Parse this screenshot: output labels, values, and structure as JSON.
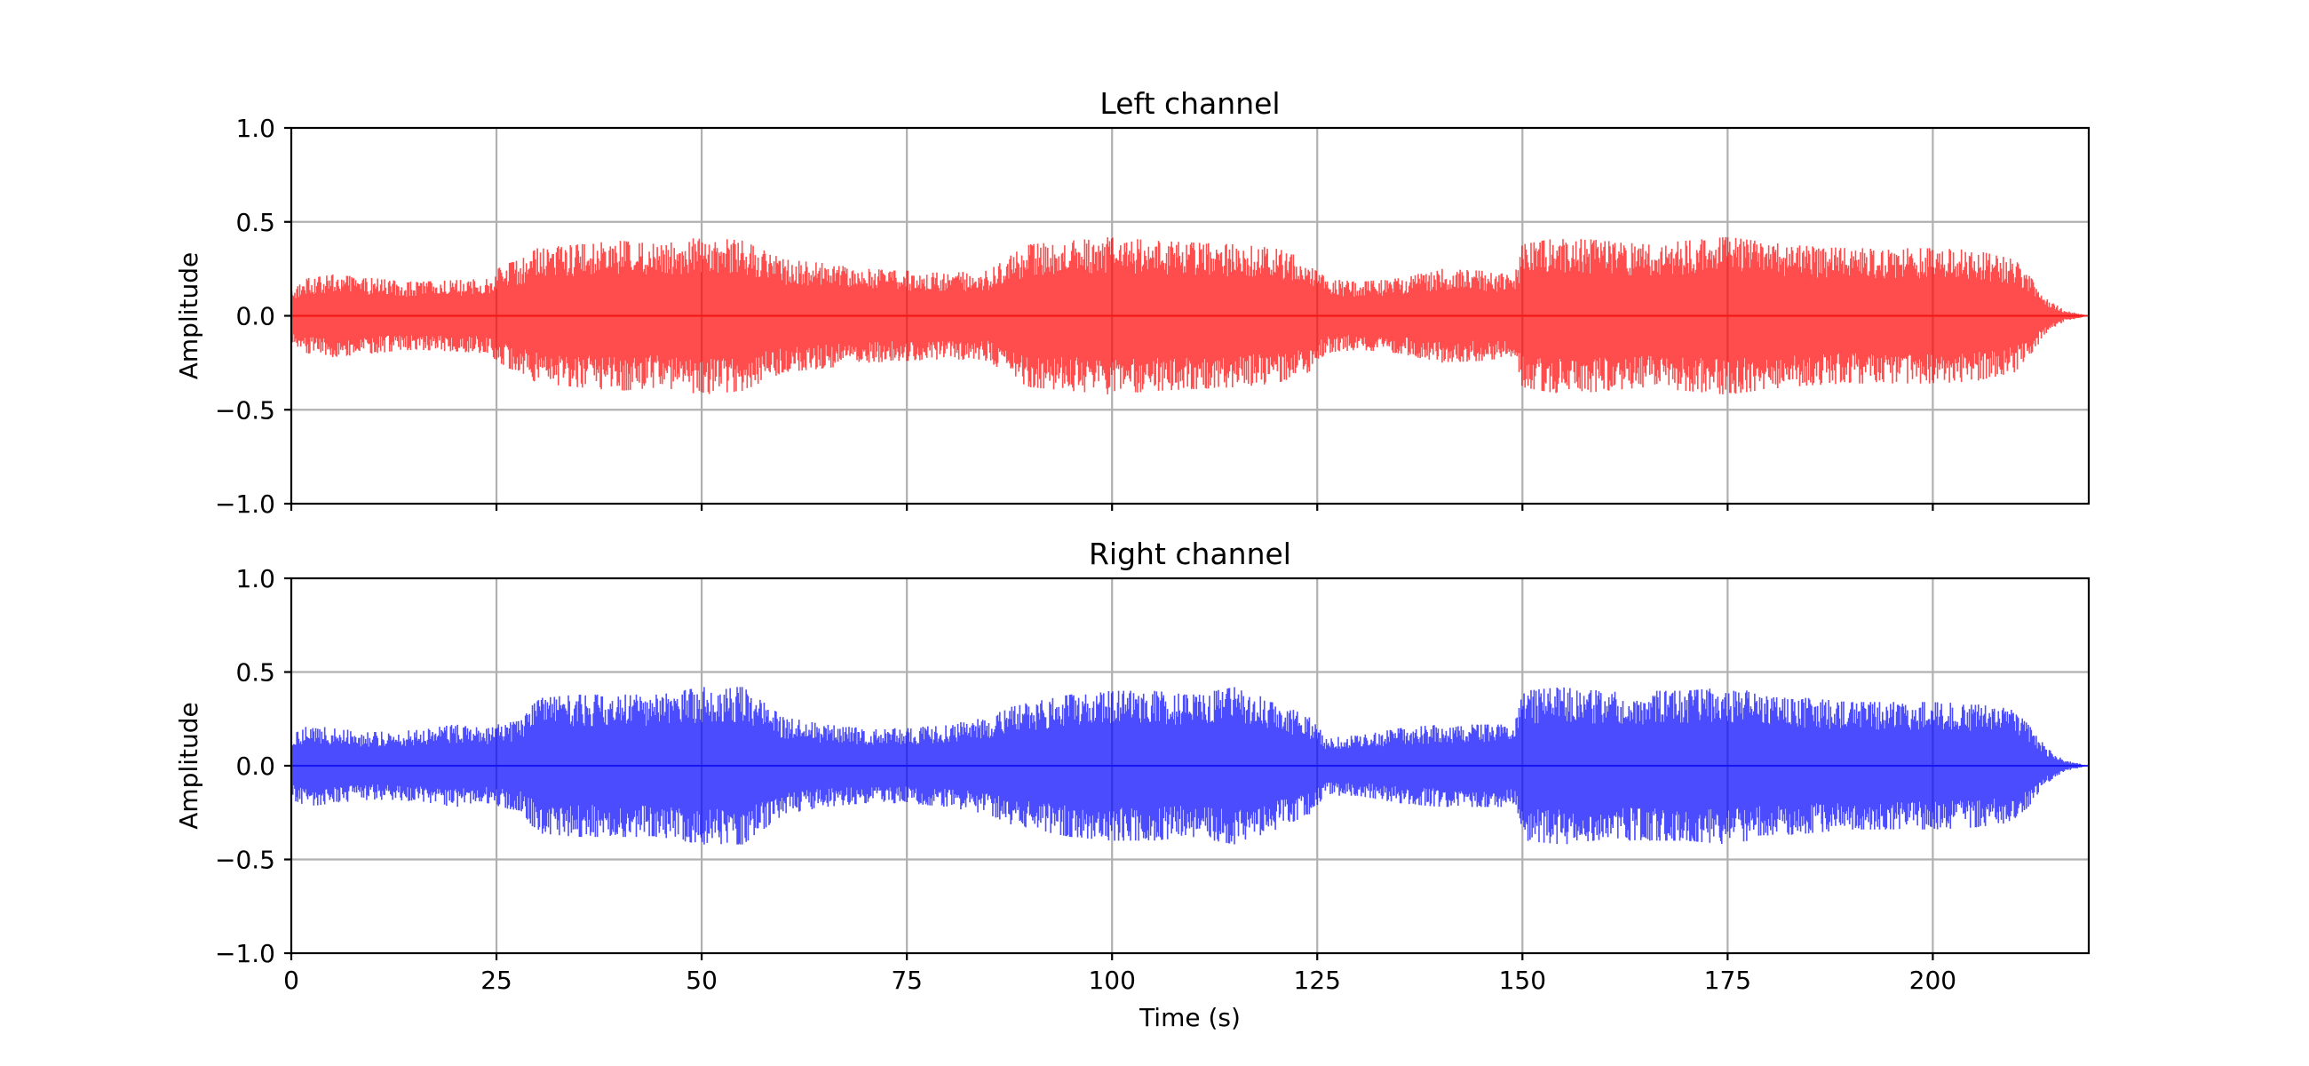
{
  "chart_data": [
    {
      "type": "area",
      "title": "Left channel",
      "xlabel": "",
      "ylabel": "Amplitude",
      "color": "#ff0000",
      "xlim": [
        0,
        219
      ],
      "ylim": [
        -1.0,
        1.0
      ],
      "xticks": [
        0,
        25,
        50,
        75,
        100,
        125,
        150,
        175,
        200
      ],
      "xtick_labels_visible": false,
      "yticks": [
        -1.0,
        -0.5,
        0.0,
        0.5,
        1.0
      ],
      "ytick_labels": [
        "−1.0",
        "−0.5",
        "0.0",
        "0.5",
        "1.0"
      ],
      "grid": true,
      "envelope": {
        "t": [
          0,
          2,
          5,
          10,
          15,
          20,
          24,
          25,
          28,
          30,
          35,
          40,
          45,
          50,
          55,
          60,
          65,
          70,
          75,
          80,
          85,
          88,
          90,
          95,
          100,
          105,
          110,
          115,
          120,
          124,
          126,
          130,
          135,
          140,
          145,
          149,
          150,
          155,
          160,
          165,
          170,
          175,
          180,
          185,
          190,
          195,
          200,
          205,
          210,
          212,
          214,
          216,
          219
        ],
        "amplitude": [
          0.15,
          0.2,
          0.22,
          0.2,
          0.18,
          0.19,
          0.2,
          0.26,
          0.3,
          0.36,
          0.38,
          0.4,
          0.38,
          0.42,
          0.4,
          0.3,
          0.28,
          0.25,
          0.24,
          0.23,
          0.24,
          0.34,
          0.38,
          0.4,
          0.42,
          0.4,
          0.39,
          0.38,
          0.36,
          0.3,
          0.2,
          0.18,
          0.2,
          0.25,
          0.24,
          0.22,
          0.38,
          0.42,
          0.4,
          0.38,
          0.4,
          0.42,
          0.39,
          0.37,
          0.36,
          0.36,
          0.36,
          0.35,
          0.3,
          0.2,
          0.09,
          0.03,
          0.0
        ]
      }
    },
    {
      "type": "area",
      "title": "Right channel",
      "xlabel": "Time (s)",
      "ylabel": "Amplitude",
      "color": "#0000ff",
      "xlim": [
        0,
        219
      ],
      "ylim": [
        -1.0,
        1.0
      ],
      "xticks": [
        0,
        25,
        50,
        75,
        100,
        125,
        150,
        175,
        200
      ],
      "xtick_labels": [
        "0",
        "25",
        "50",
        "75",
        "100",
        "125",
        "150",
        "175",
        "200"
      ],
      "xtick_labels_visible": true,
      "yticks": [
        -1.0,
        -0.5,
        0.0,
        0.5,
        1.0
      ],
      "ytick_labels": [
        "−1.0",
        "−0.5",
        "0.0",
        "0.5",
        "1.0"
      ],
      "grid": true,
      "envelope": {
        "t": [
          0,
          2,
          5,
          10,
          15,
          20,
          24,
          25,
          28,
          30,
          35,
          40,
          45,
          50,
          55,
          60,
          65,
          70,
          75,
          80,
          85,
          88,
          90,
          95,
          100,
          105,
          110,
          115,
          120,
          124,
          126,
          130,
          135,
          140,
          145,
          149,
          150,
          155,
          160,
          165,
          170,
          175,
          180,
          185,
          190,
          195,
          200,
          205,
          210,
          212,
          214,
          216,
          219
        ],
        "amplitude": [
          0.18,
          0.22,
          0.2,
          0.18,
          0.19,
          0.22,
          0.2,
          0.22,
          0.24,
          0.36,
          0.38,
          0.38,
          0.38,
          0.42,
          0.42,
          0.26,
          0.22,
          0.2,
          0.2,
          0.22,
          0.26,
          0.32,
          0.34,
          0.38,
          0.4,
          0.4,
          0.38,
          0.42,
          0.34,
          0.26,
          0.16,
          0.16,
          0.2,
          0.22,
          0.22,
          0.22,
          0.4,
          0.42,
          0.4,
          0.4,
          0.4,
          0.42,
          0.38,
          0.36,
          0.34,
          0.34,
          0.34,
          0.33,
          0.3,
          0.2,
          0.09,
          0.03,
          0.0
        ]
      }
    }
  ]
}
